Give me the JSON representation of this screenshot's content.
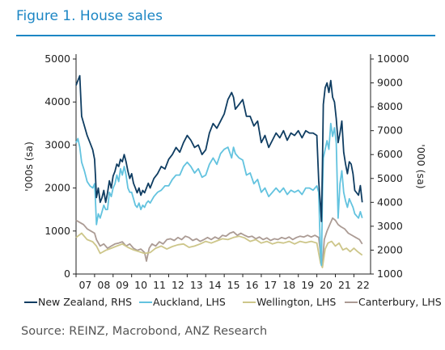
{
  "figure": {
    "title": "Figure 1.  House sales",
    "source": "Source: REINZ, Macrobond, ANZ Research"
  },
  "colors": {
    "title": "#1c86c4",
    "new_zealand": "#0f3d62",
    "auckland": "#63c3df",
    "wellington": "#cdc68a",
    "canterbury": "#ab9b94"
  },
  "chart_data": {
    "type": "line",
    "title": "House sales",
    "ylabel": "'000s (sa)",
    "ylabel_right": "'000 (sa)",
    "ylim": [
      0,
      5000
    ],
    "ylim_right": [
      1000,
      10000
    ],
    "yticks": [
      "0",
      "1000",
      "2000",
      "3000",
      "4000",
      "5000"
    ],
    "yticks_right": [
      "1000",
      "2000",
      "3000",
      "4000",
      "5000",
      "6000",
      "7000",
      "8000",
      "9000",
      "10000"
    ],
    "xticks": [
      "07",
      "08",
      "09",
      "10",
      "11",
      "12",
      "13",
      "14",
      "15",
      "16",
      "17",
      "18",
      "19",
      "20",
      "21",
      "22"
    ],
    "xlim": [
      2007.0,
      2022.9
    ],
    "grid": false,
    "legend_position": "bottom",
    "series": [
      {
        "name": "New Zealand, RHS",
        "key": "new_zealand",
        "axis": "right",
        "x": [
          2007.0,
          2007.1,
          2007.2,
          2007.3,
          2007.45,
          2007.6,
          2007.75,
          2007.9,
          2008.0,
          2008.05,
          2008.1,
          2008.2,
          2008.3,
          2008.4,
          2008.5,
          2008.6,
          2008.7,
          2008.8,
          2008.9,
          2009.0,
          2009.1,
          2009.2,
          2009.3,
          2009.4,
          2009.5,
          2009.6,
          2009.7,
          2009.8,
          2009.9,
          2010.0,
          2010.1,
          2010.2,
          2010.3,
          2010.4,
          2010.5,
          2010.6,
          2010.7,
          2010.8,
          2010.9,
          2011.0,
          2011.2,
          2011.4,
          2011.6,
          2011.8,
          2012.0,
          2012.2,
          2012.4,
          2012.6,
          2012.8,
          2013.0,
          2013.2,
          2013.4,
          2013.6,
          2013.8,
          2014.0,
          2014.2,
          2014.4,
          2014.6,
          2014.8,
          2015.0,
          2015.2,
          2015.4,
          2015.5,
          2015.6,
          2015.8,
          2016.0,
          2016.2,
          2016.4,
          2016.6,
          2016.8,
          2017.0,
          2017.2,
          2017.4,
          2017.6,
          2017.8,
          2018.0,
          2018.2,
          2018.4,
          2018.6,
          2018.8,
          2019.0,
          2019.2,
          2019.4,
          2019.6,
          2019.8,
          2020.0,
          2020.1,
          2020.2,
          2020.25,
          2020.3,
          2020.35,
          2020.45,
          2020.55,
          2020.65,
          2020.75,
          2020.85,
          2020.95,
          2021.05,
          2021.15,
          2021.25,
          2021.35,
          2021.45,
          2021.55,
          2021.65,
          2021.75,
          2021.85,
          2021.95,
          2022.05,
          2022.15,
          2022.25,
          2022.35,
          2022.45
        ],
        "y": [
          8900,
          9100,
          9300,
          7600,
          7200,
          6800,
          6500,
          6200,
          5800,
          5100,
          4200,
          4600,
          4000,
          4200,
          4500,
          4000,
          4400,
          4900,
          4600,
          5100,
          5300,
          5600,
          5500,
          5800,
          5700,
          6000,
          5700,
          5300,
          5000,
          5200,
          4800,
          4600,
          4400,
          4600,
          4300,
          4500,
          4400,
          4600,
          4800,
          4600,
          5000,
          5200,
          5500,
          5400,
          5800,
          6000,
          6300,
          6100,
          6500,
          6800,
          6600,
          6300,
          6400,
          6000,
          6200,
          6900,
          7300,
          7100,
          7400,
          7700,
          8300,
          8600,
          8400,
          7900,
          8100,
          8300,
          7600,
          7600,
          7200,
          7400,
          6500,
          6800,
          6300,
          6600,
          6900,
          6700,
          7000,
          6600,
          6900,
          6800,
          7000,
          6700,
          7000,
          6900,
          6900,
          6800,
          4900,
          3800,
          3200,
          5500,
          8100,
          8800,
          9000,
          8600,
          9100,
          8400,
          8200,
          7500,
          6500,
          6900,
          7400,
          6100,
          5600,
          5200,
          5700,
          5600,
          5200,
          4500,
          4400,
          4300,
          4700,
          4000
        ]
      },
      {
        "name": "Auckland, LHS",
        "key": "auckland",
        "axis": "left",
        "x": [
          2007.0,
          2007.1,
          2007.2,
          2007.3,
          2007.45,
          2007.6,
          2007.75,
          2007.9,
          2008.0,
          2008.05,
          2008.1,
          2008.2,
          2008.3,
          2008.4,
          2008.5,
          2008.6,
          2008.7,
          2008.8,
          2008.9,
          2009.0,
          2009.1,
          2009.2,
          2009.3,
          2009.4,
          2009.5,
          2009.6,
          2009.7,
          2009.8,
          2009.9,
          2010.0,
          2010.1,
          2010.2,
          2010.3,
          2010.4,
          2010.5,
          2010.6,
          2010.7,
          2010.8,
          2010.9,
          2011.0,
          2011.2,
          2011.4,
          2011.6,
          2011.8,
          2012.0,
          2012.2,
          2012.4,
          2012.6,
          2012.8,
          2013.0,
          2013.2,
          2013.4,
          2013.6,
          2013.8,
          2014.0,
          2014.2,
          2014.4,
          2014.6,
          2014.8,
          2015.0,
          2015.2,
          2015.4,
          2015.5,
          2015.6,
          2015.8,
          2016.0,
          2016.2,
          2016.4,
          2016.6,
          2016.8,
          2017.0,
          2017.2,
          2017.4,
          2017.6,
          2017.8,
          2018.0,
          2018.2,
          2018.4,
          2018.6,
          2018.8,
          2019.0,
          2019.2,
          2019.4,
          2019.6,
          2019.8,
          2020.0,
          2020.1,
          2020.2,
          2020.25,
          2020.3,
          2020.35,
          2020.45,
          2020.55,
          2020.65,
          2020.75,
          2020.85,
          2020.95,
          2021.05,
          2021.15,
          2021.25,
          2021.35,
          2021.45,
          2021.55,
          2021.65,
          2021.75,
          2021.85,
          2021.95,
          2022.05,
          2022.15,
          2022.25,
          2022.35,
          2022.45
        ],
        "y": [
          3050,
          3150,
          2950,
          2600,
          2400,
          2150,
          2050,
          2000,
          2100,
          1700,
          1150,
          1400,
          1300,
          1450,
          1600,
          1500,
          1500,
          1900,
          1800,
          2000,
          2100,
          2300,
          2150,
          2450,
          2300,
          2500,
          2300,
          2000,
          1900,
          1900,
          1750,
          1600,
          1550,
          1650,
          1500,
          1600,
          1550,
          1650,
          1700,
          1650,
          1800,
          1900,
          1950,
          2050,
          2050,
          2200,
          2300,
          2300,
          2500,
          2600,
          2500,
          2350,
          2450,
          2250,
          2300,
          2550,
          2700,
          2550,
          2800,
          2900,
          2950,
          2700,
          2950,
          2800,
          2700,
          2650,
          2300,
          2350,
          2100,
          2200,
          1900,
          2000,
          1800,
          1900,
          2000,
          1900,
          2000,
          1850,
          1950,
          1900,
          1950,
          1850,
          2000,
          2000,
          1950,
          2050,
          1900,
          400,
          200,
          1800,
          2700,
          2900,
          3100,
          2900,
          3500,
          3200,
          3400,
          3050,
          1300,
          2100,
          2400,
          1900,
          1700,
          1550,
          1750,
          1650,
          1550,
          1400,
          1350,
          1300,
          1450,
          1300
        ]
      },
      {
        "name": "Wellington, LHS",
        "key": "wellington",
        "axis": "left",
        "x": [
          2007.0,
          2007.3,
          2007.6,
          2007.9,
          2008.1,
          2008.3,
          2008.6,
          2008.9,
          2009.2,
          2009.5,
          2009.8,
          2010.1,
          2010.4,
          2010.7,
          2011.0,
          2011.3,
          2011.6,
          2011.9,
          2012.2,
          2012.5,
          2012.8,
          2013.1,
          2013.4,
          2013.7,
          2014.0,
          2014.3,
          2014.6,
          2014.9,
          2015.2,
          2015.5,
          2015.8,
          2016.1,
          2016.4,
          2016.7,
          2017.0,
          2017.3,
          2017.6,
          2017.9,
          2018.2,
          2018.5,
          2018.8,
          2019.1,
          2019.4,
          2019.7,
          2020.0,
          2020.2,
          2020.3,
          2020.45,
          2020.6,
          2020.8,
          2021.0,
          2021.2,
          2021.4,
          2021.6,
          2021.8,
          2022.0,
          2022.2,
          2022.45
        ],
        "y": [
          850,
          950,
          800,
          750,
          650,
          480,
          550,
          600,
          650,
          700,
          620,
          560,
          520,
          480,
          500,
          600,
          650,
          580,
          640,
          680,
          700,
          620,
          650,
          700,
          760,
          720,
          770,
          820,
          800,
          850,
          880,
          840,
          760,
          800,
          720,
          760,
          700,
          740,
          720,
          760,
          700,
          760,
          730,
          760,
          720,
          250,
          150,
          580,
          720,
          760,
          650,
          720,
          560,
          600,
          520,
          600,
          520,
          440
        ]
      },
      {
        "name": "Canterbury, LHS",
        "key": "canterbury",
        "axis": "left",
        "x": [
          2007.0,
          2007.2,
          2007.4,
          2007.6,
          2007.8,
          2008.0,
          2008.1,
          2008.3,
          2008.5,
          2008.7,
          2008.9,
          2009.1,
          2009.3,
          2009.5,
          2009.7,
          2009.9,
          2010.1,
          2010.3,
          2010.5,
          2010.7,
          2010.8,
          2010.95,
          2011.1,
          2011.3,
          2011.5,
          2011.7,
          2011.9,
          2012.1,
          2012.3,
          2012.5,
          2012.7,
          2012.9,
          2013.1,
          2013.3,
          2013.5,
          2013.7,
          2013.9,
          2014.1,
          2014.3,
          2014.5,
          2014.7,
          2014.9,
          2015.1,
          2015.3,
          2015.5,
          2015.7,
          2015.9,
          2016.1,
          2016.3,
          2016.5,
          2016.7,
          2016.9,
          2017.1,
          2017.3,
          2017.5,
          2017.7,
          2017.9,
          2018.1,
          2018.3,
          2018.5,
          2018.7,
          2018.9,
          2019.1,
          2019.3,
          2019.5,
          2019.7,
          2019.9,
          2020.1,
          2020.2,
          2020.3,
          2020.4,
          2020.55,
          2020.7,
          2020.85,
          2021.0,
          2021.15,
          2021.3,
          2021.5,
          2021.7,
          2021.9,
          2022.1,
          2022.3,
          2022.45
        ],
        "y": [
          1250,
          1200,
          1150,
          1050,
          1000,
          950,
          800,
          650,
          700,
          600,
          650,
          700,
          720,
          750,
          650,
          700,
          600,
          550,
          580,
          500,
          300,
          600,
          700,
          650,
          750,
          700,
          800,
          820,
          780,
          850,
          800,
          880,
          850,
          780,
          820,
          760,
          800,
          850,
          800,
          860,
          820,
          900,
          880,
          950,
          980,
          900,
          950,
          900,
          860,
          880,
          820,
          860,
          800,
          840,
          780,
          820,
          800,
          850,
          820,
          860,
          800,
          850,
          880,
          860,
          900,
          860,
          900,
          850,
          450,
          200,
          800,
          1000,
          1150,
          1300,
          1250,
          1150,
          1100,
          1050,
          950,
          900,
          850,
          800,
          700
        ]
      }
    ]
  }
}
